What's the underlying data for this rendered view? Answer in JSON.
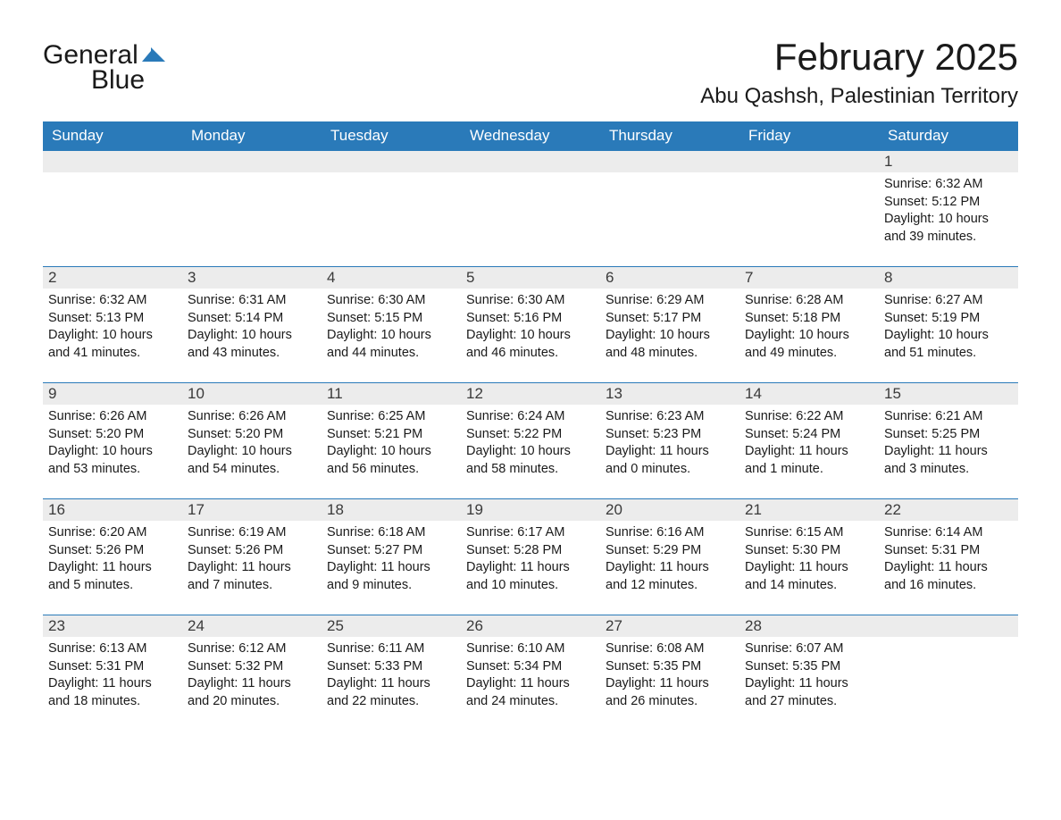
{
  "logo": {
    "text1": "General",
    "text2": "Blue"
  },
  "title": "February 2025",
  "location": "Abu Qashsh, Palestinian Territory",
  "colors": {
    "header_bg": "#2a7ab9",
    "header_text": "#ffffff",
    "daynum_bg": "#ececec",
    "border": "#2a7ab9",
    "bg": "#ffffff"
  },
  "weekdays": [
    "Sunday",
    "Monday",
    "Tuesday",
    "Wednesday",
    "Thursday",
    "Friday",
    "Saturday"
  ],
  "weeks": [
    [
      null,
      null,
      null,
      null,
      null,
      null,
      {
        "n": 1,
        "sr": "6:32 AM",
        "ss": "5:12 PM",
        "dl": "10 hours and 39 minutes."
      }
    ],
    [
      {
        "n": 2,
        "sr": "6:32 AM",
        "ss": "5:13 PM",
        "dl": "10 hours and 41 minutes."
      },
      {
        "n": 3,
        "sr": "6:31 AM",
        "ss": "5:14 PM",
        "dl": "10 hours and 43 minutes."
      },
      {
        "n": 4,
        "sr": "6:30 AM",
        "ss": "5:15 PM",
        "dl": "10 hours and 44 minutes."
      },
      {
        "n": 5,
        "sr": "6:30 AM",
        "ss": "5:16 PM",
        "dl": "10 hours and 46 minutes."
      },
      {
        "n": 6,
        "sr": "6:29 AM",
        "ss": "5:17 PM",
        "dl": "10 hours and 48 minutes."
      },
      {
        "n": 7,
        "sr": "6:28 AM",
        "ss": "5:18 PM",
        "dl": "10 hours and 49 minutes."
      },
      {
        "n": 8,
        "sr": "6:27 AM",
        "ss": "5:19 PM",
        "dl": "10 hours and 51 minutes."
      }
    ],
    [
      {
        "n": 9,
        "sr": "6:26 AM",
        "ss": "5:20 PM",
        "dl": "10 hours and 53 minutes."
      },
      {
        "n": 10,
        "sr": "6:26 AM",
        "ss": "5:20 PM",
        "dl": "10 hours and 54 minutes."
      },
      {
        "n": 11,
        "sr": "6:25 AM",
        "ss": "5:21 PM",
        "dl": "10 hours and 56 minutes."
      },
      {
        "n": 12,
        "sr": "6:24 AM",
        "ss": "5:22 PM",
        "dl": "10 hours and 58 minutes."
      },
      {
        "n": 13,
        "sr": "6:23 AM",
        "ss": "5:23 PM",
        "dl": "11 hours and 0 minutes."
      },
      {
        "n": 14,
        "sr": "6:22 AM",
        "ss": "5:24 PM",
        "dl": "11 hours and 1 minute."
      },
      {
        "n": 15,
        "sr": "6:21 AM",
        "ss": "5:25 PM",
        "dl": "11 hours and 3 minutes."
      }
    ],
    [
      {
        "n": 16,
        "sr": "6:20 AM",
        "ss": "5:26 PM",
        "dl": "11 hours and 5 minutes."
      },
      {
        "n": 17,
        "sr": "6:19 AM",
        "ss": "5:26 PM",
        "dl": "11 hours and 7 minutes."
      },
      {
        "n": 18,
        "sr": "6:18 AM",
        "ss": "5:27 PM",
        "dl": "11 hours and 9 minutes."
      },
      {
        "n": 19,
        "sr": "6:17 AM",
        "ss": "5:28 PM",
        "dl": "11 hours and 10 minutes."
      },
      {
        "n": 20,
        "sr": "6:16 AM",
        "ss": "5:29 PM",
        "dl": "11 hours and 12 minutes."
      },
      {
        "n": 21,
        "sr": "6:15 AM",
        "ss": "5:30 PM",
        "dl": "11 hours and 14 minutes."
      },
      {
        "n": 22,
        "sr": "6:14 AM",
        "ss": "5:31 PM",
        "dl": "11 hours and 16 minutes."
      }
    ],
    [
      {
        "n": 23,
        "sr": "6:13 AM",
        "ss": "5:31 PM",
        "dl": "11 hours and 18 minutes."
      },
      {
        "n": 24,
        "sr": "6:12 AM",
        "ss": "5:32 PM",
        "dl": "11 hours and 20 minutes."
      },
      {
        "n": 25,
        "sr": "6:11 AM",
        "ss": "5:33 PM",
        "dl": "11 hours and 22 minutes."
      },
      {
        "n": 26,
        "sr": "6:10 AM",
        "ss": "5:34 PM",
        "dl": "11 hours and 24 minutes."
      },
      {
        "n": 27,
        "sr": "6:08 AM",
        "ss": "5:35 PM",
        "dl": "11 hours and 26 minutes."
      },
      {
        "n": 28,
        "sr": "6:07 AM",
        "ss": "5:35 PM",
        "dl": "11 hours and 27 minutes."
      },
      null
    ]
  ],
  "labels": {
    "sunrise": "Sunrise:",
    "sunset": "Sunset:",
    "daylight": "Daylight:"
  }
}
